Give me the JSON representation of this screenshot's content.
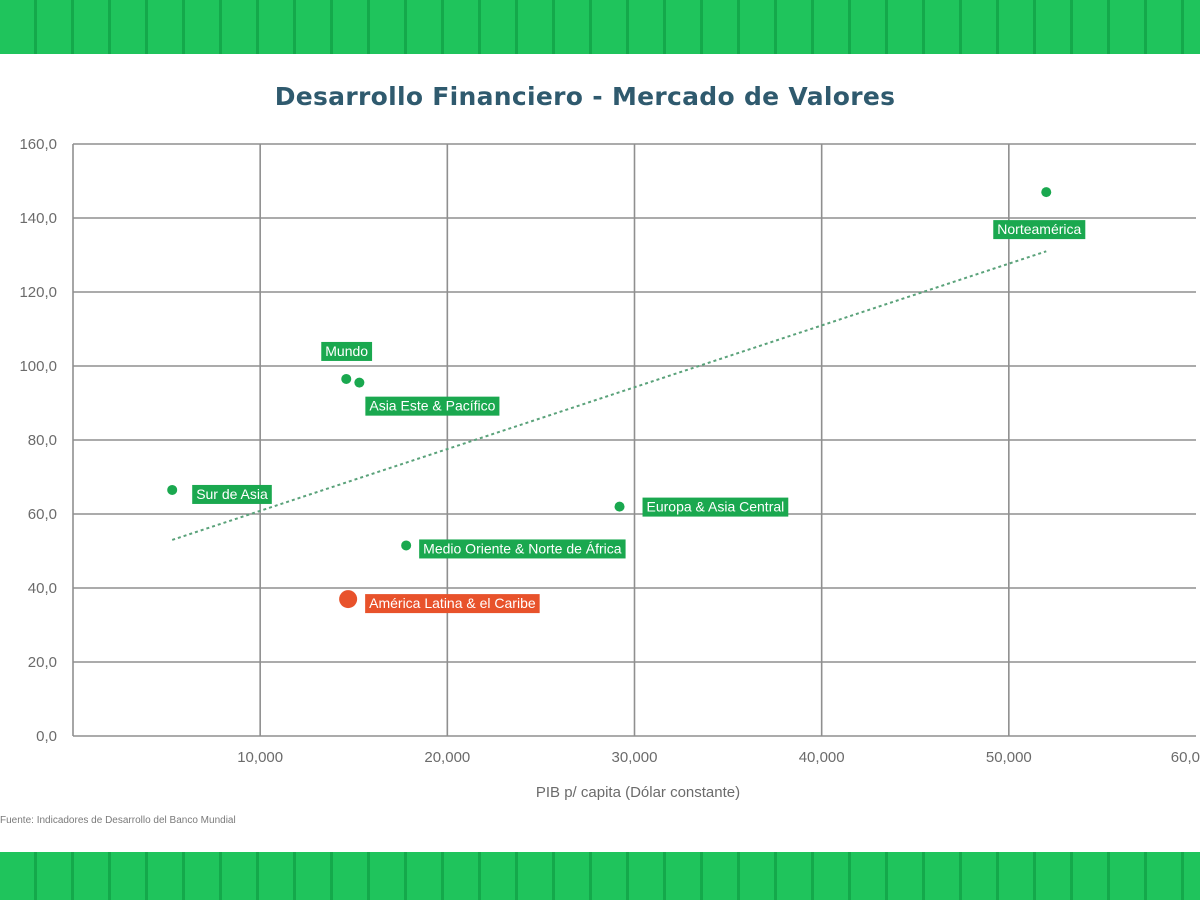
{
  "chart_data": {
    "type": "scatter",
    "title": "Desarrollo Financiero - Mercado de Valores",
    "xlabel": "PIB p/ capita (Dólar constante)",
    "ylabel": "",
    "xlim": [
      0,
      60000
    ],
    "ylim": [
      0,
      160
    ],
    "x_ticks": [
      "10,000",
      "20,000",
      "30,000",
      "40,000",
      "50,000",
      "60,0"
    ],
    "y_ticks": [
      "0,0",
      "20,0",
      "40,0",
      "60,0",
      "80,0",
      "100,0",
      "120,0",
      "140,0",
      "160,0"
    ],
    "grid": true,
    "colors": {
      "region": "#1aa84f",
      "highlight": "#e8522b",
      "title": "#2f5a6e",
      "band": "#1fc45c"
    },
    "points": [
      {
        "label": "Norteamérica",
        "x": 52000,
        "y": 147,
        "highlight": false
      },
      {
        "label": "Mundo",
        "x": 14600,
        "y": 96.5,
        "highlight": false
      },
      {
        "label": "Asia Este & Pacífico",
        "x": 15300,
        "y": 95.5,
        "highlight": false
      },
      {
        "label": "Sur de Asia",
        "x": 5300,
        "y": 66.5,
        "highlight": false
      },
      {
        "label": "Europa & Asia Central",
        "x": 29200,
        "y": 62,
        "highlight": false
      },
      {
        "label": "Medio Oriente & Norte de África",
        "x": 17800,
        "y": 51.5,
        "highlight": false
      },
      {
        "label": "América Latina & el Caribe",
        "x": 14700,
        "y": 37,
        "highlight": true
      }
    ],
    "trendline": {
      "x": [
        5300,
        52000
      ],
      "y": [
        53,
        131
      ]
    }
  },
  "source": "Fuente: Indicadores de Desarrollo del Banco Mundial"
}
